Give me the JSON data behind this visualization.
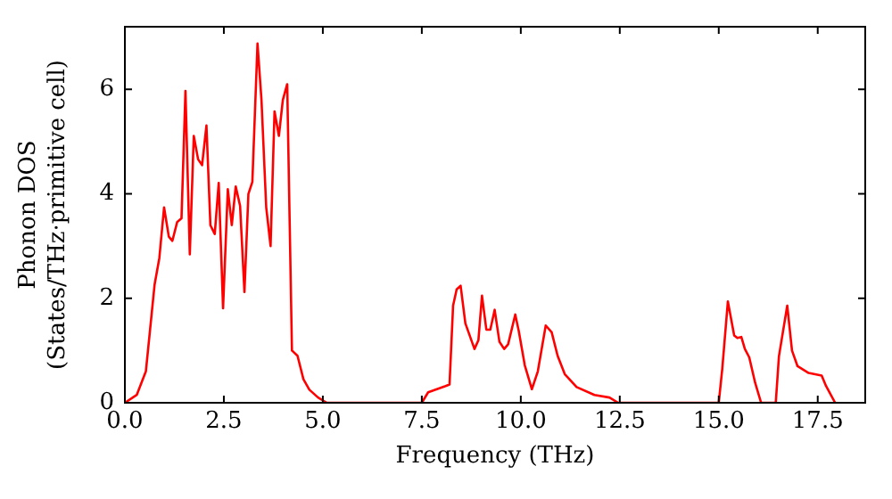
{
  "chart_data": {
    "type": "line",
    "xlabel": "Frequency (THz)",
    "ylabel": "Phonon DOS\n(States/THz·primitive cell)",
    "x": [
      0,
      0.3,
      0.53,
      0.75,
      0.87,
      0.99,
      1.11,
      1.2,
      1.32,
      1.43,
      1.53,
      1.64,
      1.74,
      1.85,
      1.95,
      2.06,
      2.16,
      2.27,
      2.37,
      2.48,
      2.6,
      2.7,
      2.8,
      2.91,
      3.02,
      3.12,
      3.22,
      3.35,
      3.45,
      3.57,
      3.68,
      3.78,
      3.89,
      3.99,
      4.1,
      4.22,
      4.36,
      4.51,
      4.66,
      4.88,
      5.1,
      7.5,
      7.66,
      8.1,
      8.2,
      8.29,
      8.38,
      8.48,
      8.6,
      8.83,
      8.93,
      9.02,
      9.13,
      9.23,
      9.34,
      9.46,
      9.58,
      9.68,
      9.86,
      9.95,
      10.1,
      10.28,
      10.43,
      10.63,
      10.78,
      10.93,
      11.11,
      11.41,
      11.86,
      12.24,
      12.46,
      15.0,
      15.09,
      15.23,
      15.39,
      15.47,
      15.57,
      15.66,
      15.77,
      15.92,
      16.07,
      16.44,
      16.52,
      16.73,
      16.85,
      16.99,
      17.27,
      17.6,
      17.71,
      17.94
    ],
    "series": [
      {
        "color": "#ff0000",
        "values": [
          0,
          0.15,
          0.6,
          2.26,
          2.77,
          3.74,
          3.18,
          3.1,
          3.46,
          3.53,
          5.97,
          2.84,
          5.11,
          4.66,
          4.55,
          5.31,
          3.4,
          3.23,
          4.21,
          1.81,
          4.09,
          3.4,
          4.14,
          3.77,
          2.12,
          4.0,
          4.23,
          6.88,
          5.8,
          3.74,
          3.0,
          5.58,
          5.11,
          5.8,
          6.1,
          1.0,
          0.9,
          0.45,
          0.25,
          0.1,
          0,
          0,
          0.2,
          0.32,
          0.35,
          1.86,
          2.17,
          2.24,
          1.52,
          1.03,
          1.2,
          2.05,
          1.4,
          1.4,
          1.78,
          1.17,
          1.03,
          1.12,
          1.69,
          1.37,
          0.72,
          0.26,
          0.6,
          1.48,
          1.35,
          0.9,
          0.55,
          0.3,
          0.15,
          0.1,
          0,
          0,
          0.66,
          1.94,
          1.29,
          1.24,
          1.26,
          1.03,
          0.87,
          0.38,
          0,
          0,
          0.89,
          1.86,
          1.0,
          0.7,
          0.57,
          0.52,
          0.32,
          0
        ]
      }
    ],
    "xlim": [
      0,
      18.7
    ],
    "ylim": [
      0,
      7.2
    ],
    "xticks": [
      {
        "value": 0,
        "label": "0.0"
      },
      {
        "value": 2.5,
        "label": "2.5"
      },
      {
        "value": 5,
        "label": "5.0"
      },
      {
        "value": 7.5,
        "label": "7.5"
      },
      {
        "value": 10,
        "label": "10.0"
      },
      {
        "value": 12.5,
        "label": "12.5"
      },
      {
        "value": 15,
        "label": "15.0"
      },
      {
        "value": 17.5,
        "label": "17.5"
      }
    ],
    "yticks": [
      0,
      2,
      4,
      6
    ],
    "grid": false,
    "legend": false,
    "marker": "none",
    "line_style": "solid"
  }
}
